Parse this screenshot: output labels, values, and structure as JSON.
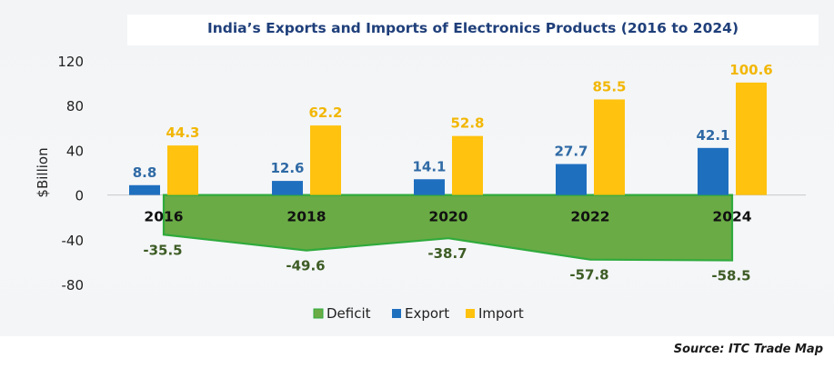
{
  "chart_data": {
    "type": "bar",
    "title": "India’s Exports and Imports of Electronics Products (2016 to 2024)",
    "ylabel": "$Billion",
    "xlabel": "",
    "ylim": [
      -80,
      120
    ],
    "yticks": [
      "120",
      "80",
      "40",
      "0",
      "-40",
      "-80"
    ],
    "ytick_values": [
      120,
      80,
      40,
      0,
      -40,
      -80
    ],
    "categories": [
      "2016",
      "2018",
      "2020",
      "2022",
      "2024"
    ],
    "series": [
      {
        "name": "Export",
        "type": "bar",
        "color": "#1f6fbf",
        "values": [
          8.8,
          12.6,
          14.1,
          27.7,
          42.1
        ],
        "labels": [
          "8.8",
          "12.6",
          "14.1",
          "27.7",
          "42.1"
        ]
      },
      {
        "name": "Import",
        "type": "bar",
        "color": "#ffc20e",
        "values": [
          44.3,
          62.2,
          52.8,
          85.5,
          100.6
        ],
        "labels": [
          "44.3",
          "62.2",
          "52.8",
          "85.5",
          "100.6"
        ]
      },
      {
        "name": "Deficit",
        "type": "area",
        "color": "#6aab45",
        "values": [
          -35.5,
          -49.6,
          -38.7,
          -57.8,
          -58.5
        ],
        "labels": [
          "-35.5",
          "-49.6",
          "-38.7",
          "-57.8",
          "-58.5"
        ]
      }
    ],
    "legend": [
      "Deficit",
      "Export",
      "Import"
    ],
    "legend_position": "bottom"
  },
  "source": "Source: ITC Trade Map",
  "colors": {
    "title": "#1f3f7a",
    "export_label": "#2f6aa5",
    "import_label": "#f2b705",
    "deficit_label": "#3d5c25",
    "deficit_stroke": "#2faa3c"
  }
}
